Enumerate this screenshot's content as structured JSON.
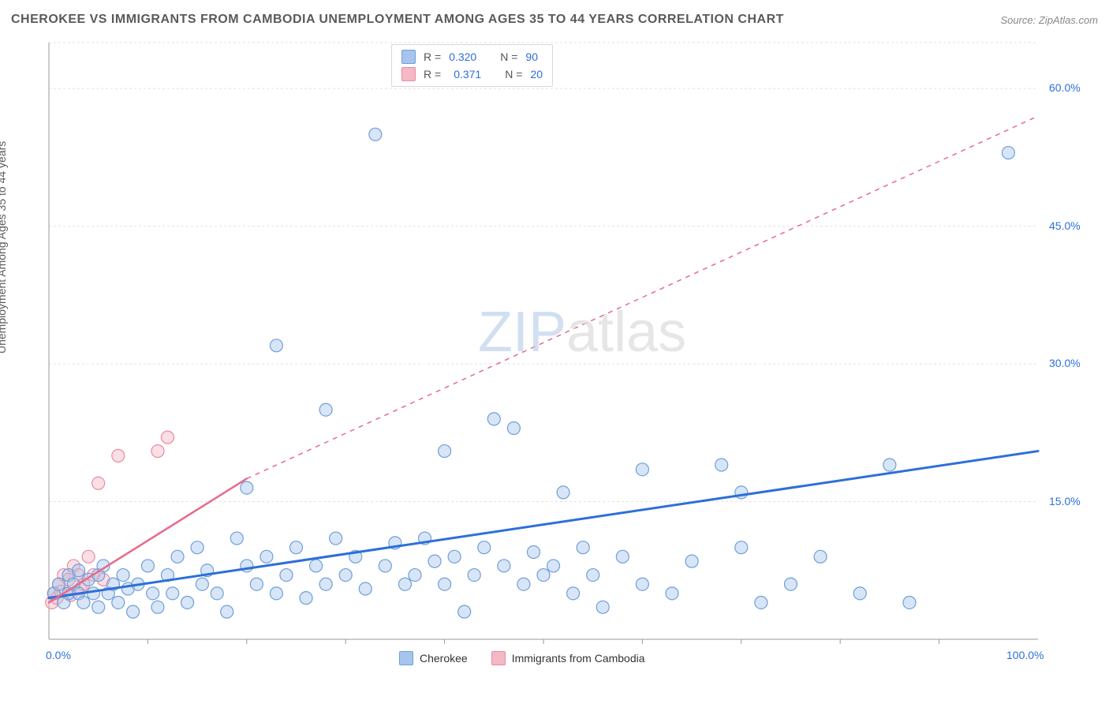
{
  "title": "CHEROKEE VS IMMIGRANTS FROM CAMBODIA UNEMPLOYMENT AMONG AGES 35 TO 44 YEARS CORRELATION CHART",
  "source": "Source: ZipAtlas.com",
  "y_axis_label": "Unemployment Among Ages 35 to 44 years",
  "watermark_zip": "ZIP",
  "watermark_atlas": "atlas",
  "chart": {
    "type": "scatter",
    "xlim": [
      0,
      100
    ],
    "ylim": [
      0,
      65
    ],
    "x_tick_labels": {
      "0": "0.0%",
      "100": "100.0%"
    },
    "x_minor_ticks": [
      10,
      20,
      30,
      40,
      50,
      60,
      70,
      80,
      90
    ],
    "y_tick_labels": {
      "15": "15.0%",
      "30": "30.0%",
      "45": "45.0%",
      "60": "60.0%"
    },
    "y_gridlines": [
      15,
      30,
      45,
      60,
      65
    ],
    "grid_color": "#e2e2e2",
    "grid_dash": "3,3",
    "axis_color": "#999999",
    "background_color": "#ffffff",
    "point_radius": 8,
    "point_fill_opacity": 0.45,
    "point_stroke_width": 1.2,
    "series": [
      {
        "name": "Cherokee",
        "fill_color": "#a6c5ec",
        "stroke_color": "#6f9fd8",
        "trend": {
          "x1": 0,
          "y1": 4.5,
          "x2": 100,
          "y2": 20.5,
          "color": "#2d6fd8",
          "width": 3,
          "dash_beyond": false
        },
        "stats": {
          "R": "0.320",
          "N": "90"
        },
        "points": [
          [
            0.5,
            5
          ],
          [
            1,
            6
          ],
          [
            1.5,
            4
          ],
          [
            2,
            7
          ],
          [
            2,
            5
          ],
          [
            2.5,
            6
          ],
          [
            3,
            5
          ],
          [
            3,
            7.5
          ],
          [
            3.5,
            4
          ],
          [
            4,
            6.5
          ],
          [
            4.5,
            5
          ],
          [
            5,
            7
          ],
          [
            5,
            3.5
          ],
          [
            5.5,
            8
          ],
          [
            6,
            5
          ],
          [
            6.5,
            6
          ],
          [
            7,
            4
          ],
          [
            7.5,
            7
          ],
          [
            8,
            5.5
          ],
          [
            8.5,
            3
          ],
          [
            9,
            6
          ],
          [
            10,
            8
          ],
          [
            10.5,
            5
          ],
          [
            11,
            3.5
          ],
          [
            12,
            7
          ],
          [
            12.5,
            5
          ],
          [
            13,
            9
          ],
          [
            14,
            4
          ],
          [
            15,
            10
          ],
          [
            15.5,
            6
          ],
          [
            16,
            7.5
          ],
          [
            17,
            5
          ],
          [
            18,
            3
          ],
          [
            19,
            11
          ],
          [
            20,
            8
          ],
          [
            20,
            16.5
          ],
          [
            21,
            6
          ],
          [
            22,
            9
          ],
          [
            23,
            5
          ],
          [
            23,
            32
          ],
          [
            24,
            7
          ],
          [
            25,
            10
          ],
          [
            26,
            4.5
          ],
          [
            27,
            8
          ],
          [
            28,
            6
          ],
          [
            28,
            25
          ],
          [
            29,
            11
          ],
          [
            30,
            7
          ],
          [
            31,
            9
          ],
          [
            32,
            5.5
          ],
          [
            33,
            55
          ],
          [
            34,
            8
          ],
          [
            35,
            10.5
          ],
          [
            36,
            6
          ],
          [
            37,
            7
          ],
          [
            38,
            11
          ],
          [
            39,
            8.5
          ],
          [
            40,
            6
          ],
          [
            40,
            20.5
          ],
          [
            41,
            9
          ],
          [
            42,
            3
          ],
          [
            43,
            7
          ],
          [
            44,
            10
          ],
          [
            45,
            24
          ],
          [
            46,
            8
          ],
          [
            47,
            23
          ],
          [
            48,
            6
          ],
          [
            49,
            9.5
          ],
          [
            50,
            7
          ],
          [
            51,
            8
          ],
          [
            52,
            16
          ],
          [
            53,
            5
          ],
          [
            54,
            10
          ],
          [
            55,
            7
          ],
          [
            56,
            3.5
          ],
          [
            58,
            9
          ],
          [
            60,
            18.5
          ],
          [
            60,
            6
          ],
          [
            63,
            5
          ],
          [
            65,
            8.5
          ],
          [
            68,
            19
          ],
          [
            70,
            10
          ],
          [
            70,
            16
          ],
          [
            72,
            4
          ],
          [
            75,
            6
          ],
          [
            78,
            9
          ],
          [
            82,
            5
          ],
          [
            85,
            19
          ],
          [
            87,
            4
          ],
          [
            97,
            53
          ]
        ]
      },
      {
        "name": "Immigrants from Cambodia",
        "fill_color": "#f5b8c5",
        "stroke_color": "#e98ba3",
        "trend": {
          "x1": 0,
          "y1": 4,
          "x2": 20,
          "y2": 17.5,
          "extend_dash_to": [
            100,
            57
          ],
          "color": "#e76b8a",
          "width": 2.5,
          "dash_beyond": true
        },
        "stats": {
          "R": "0.371",
          "N": "20"
        },
        "points": [
          [
            0.3,
            4
          ],
          [
            0.5,
            5
          ],
          [
            0.8,
            4.5
          ],
          [
            1,
            6
          ],
          [
            1.2,
            5.2
          ],
          [
            1.5,
            7
          ],
          [
            2,
            5
          ],
          [
            2,
            6.5
          ],
          [
            2.2,
            4.8
          ],
          [
            2.5,
            8
          ],
          [
            3,
            7
          ],
          [
            3.2,
            5.5
          ],
          [
            3.5,
            6
          ],
          [
            4,
            9
          ],
          [
            4.5,
            7
          ],
          [
            5,
            17
          ],
          [
            5.5,
            6.5
          ],
          [
            7,
            20
          ],
          [
            11,
            20.5
          ],
          [
            12,
            22
          ]
        ]
      }
    ]
  },
  "top_legend": {
    "rows": [
      {
        "swatch_fill": "#a6c5ec",
        "swatch_border": "#6f9fd8",
        "R": "0.320",
        "N": "90"
      },
      {
        "swatch_fill": "#f5b8c5",
        "swatch_border": "#e98ba3",
        "R": "0.371",
        "N": "20"
      }
    ]
  },
  "bottom_legend": {
    "items": [
      {
        "swatch_fill": "#a6c5ec",
        "swatch_border": "#6f9fd8",
        "label": "Cherokee"
      },
      {
        "swatch_fill": "#f5b8c5",
        "swatch_border": "#e98ba3",
        "label": "Immigrants from Cambodia"
      }
    ]
  }
}
